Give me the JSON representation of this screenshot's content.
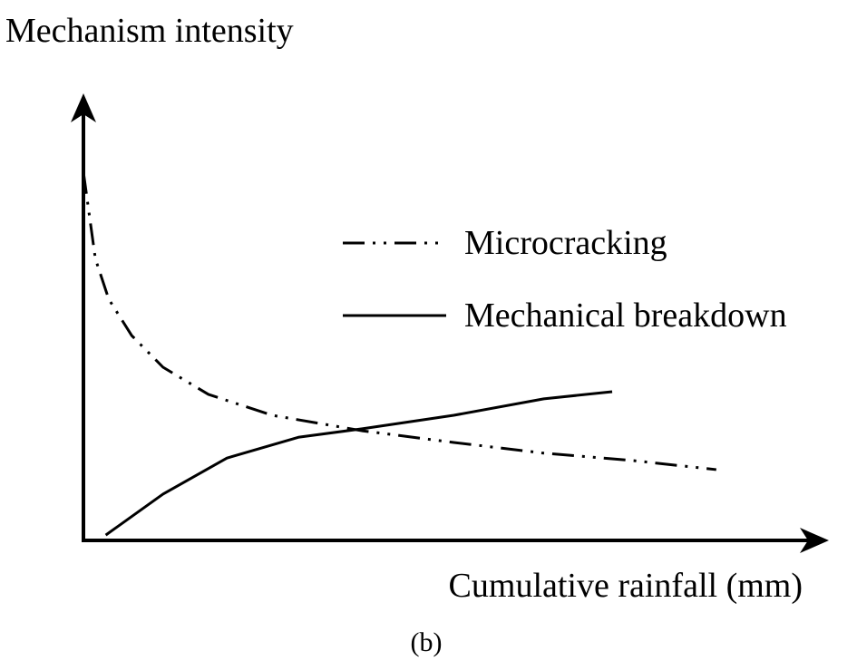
{
  "chart_data": {
    "type": "line",
    "y_label": "Mechanism intensity",
    "x_label": "Cumulative rainfall (mm)",
    "caption": "(b)",
    "xlim": [
      0,
      100
    ],
    "ylim": [
      0,
      100
    ],
    "series": [
      {
        "name": "Microcracking",
        "color": "#000000",
        "linestyle": "dashdotdot",
        "x": [
          0,
          1.6,
          3.4,
          6.5,
          10.7,
          16.8,
          25.4,
          37.6,
          49.8,
          61.9,
          74.1,
          85.1
        ],
        "values": [
          82.7,
          63.3,
          54.2,
          46.0,
          38.9,
          32.8,
          28.1,
          24.6,
          22.0,
          19.6,
          17.9,
          15.9
        ]
      },
      {
        "name": "Mechanical breakdown",
        "color": "#000000",
        "linestyle": "solid",
        "x": [
          3.0,
          10.7,
          19.3,
          29.0,
          37.6,
          49.8,
          61.9,
          71.1
        ],
        "values": [
          1.2,
          10.4,
          18.5,
          23.2,
          25.1,
          28.1,
          31.8,
          33.4
        ]
      }
    ]
  }
}
